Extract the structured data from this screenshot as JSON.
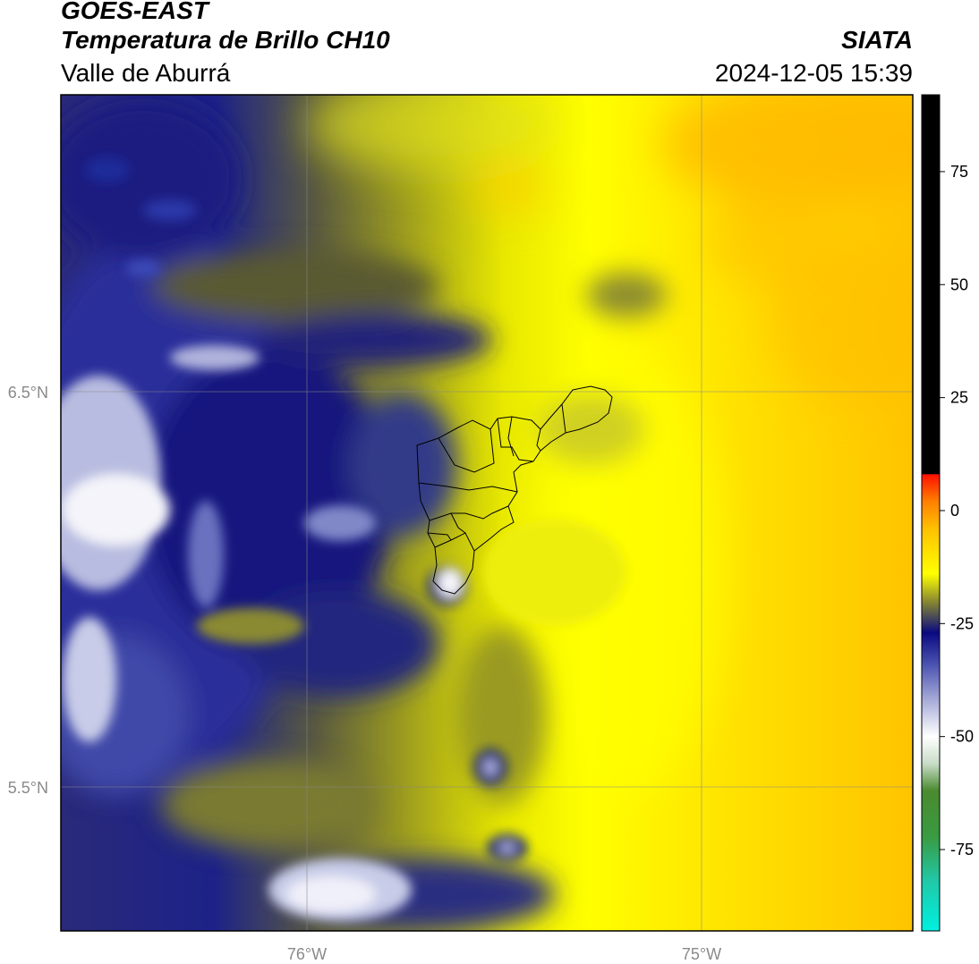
{
  "header": {
    "title": "GOES-EAST",
    "product": "Temperatura de Brillo CH10",
    "organization": "SIATA",
    "region": "Valle de Aburrá",
    "datetime": "2024-12-05 15:39"
  },
  "map": {
    "lat_ticks": [
      {
        "label": "6.5°N"
      },
      {
        "label": "5.5°N"
      }
    ],
    "lon_ticks": [
      {
        "label": "76°W"
      },
      {
        "label": "75°W"
      }
    ],
    "colors": {
      "warm": "#ffff00",
      "orange": "#ffb000",
      "olive": "#8a8a28",
      "navy": "#101a80",
      "blue": "#3a48a8",
      "lavender": "#b8bce0",
      "white": "#f4f4fa",
      "gridline": "#888888",
      "boundary": "#000000"
    }
  },
  "colorbar": {
    "ticks": [
      {
        "value": 75,
        "label": "75"
      },
      {
        "value": 50,
        "label": "50"
      },
      {
        "value": 25,
        "label": "25"
      },
      {
        "value": 0,
        "label": "0"
      },
      {
        "value": -25,
        "label": "-25"
      },
      {
        "value": -50,
        "label": "-50"
      },
      {
        "value": -75,
        "label": "-75"
      }
    ],
    "range": [
      -93,
      92
    ],
    "stops": [
      {
        "value": -93,
        "color": "#ffffff"
      },
      {
        "value": -92.9,
        "color": "#00f0e0"
      },
      {
        "value": -82,
        "color": "#20c8a8"
      },
      {
        "value": -72,
        "color": "#3a9a40"
      },
      {
        "value": -62,
        "color": "#4a8a30"
      },
      {
        "value": -56,
        "color": "#c8dcc8"
      },
      {
        "value": -50,
        "color": "#ffffff"
      },
      {
        "value": -42,
        "color": "#a8acd8"
      },
      {
        "value": -34,
        "color": "#4a52b0"
      },
      {
        "value": -27,
        "color": "#0a0a80"
      },
      {
        "value": -20,
        "color": "#8a8a30"
      },
      {
        "value": -14,
        "color": "#ffff00"
      },
      {
        "value": -4,
        "color": "#ffc000"
      },
      {
        "value": 2,
        "color": "#ff8000"
      },
      {
        "value": 8,
        "color": "#ff1000"
      },
      {
        "value": 8.1,
        "color": "#000000"
      },
      {
        "value": 92,
        "color": "#000000"
      }
    ]
  }
}
